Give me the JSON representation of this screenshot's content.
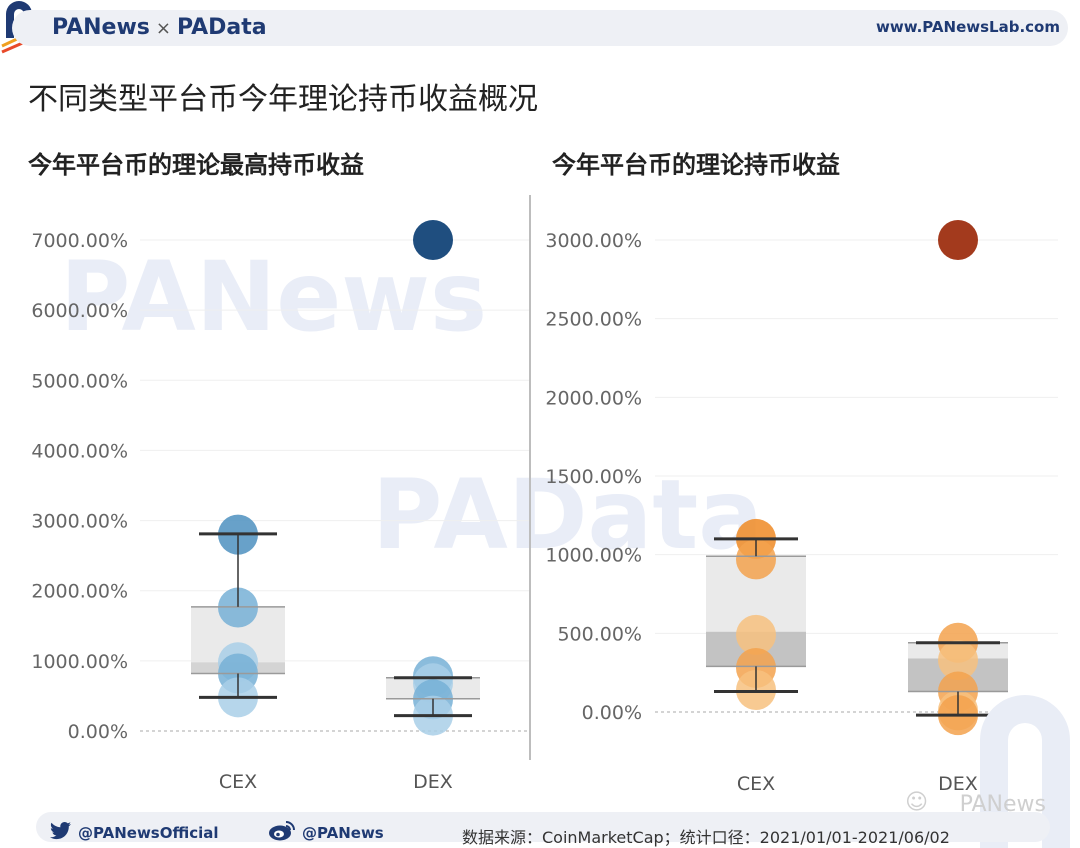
{
  "header": {
    "brand_left": "PANews",
    "brand_sep": "×",
    "brand_right": "PAData",
    "website": "www.PANewsLab.com"
  },
  "main_title": "不同类型平台币今年理论持币收益概况",
  "watermarks": [
    "PANews",
    "PAData"
  ],
  "chart_data": [
    {
      "type": "box",
      "title": "今年平台币的理论最高持币收益",
      "categories": [
        "CEX",
        "DEX"
      ],
      "ylim": [
        -400,
        7700
      ],
      "yticks": [
        0,
        1000,
        2000,
        3000,
        4000,
        5000,
        6000,
        7000
      ],
      "ytick_labels": [
        "0.00%",
        "1000.00%",
        "2000.00%",
        "3000.00%",
        "4000.00%",
        "5000.00%",
        "6000.00%",
        "7000.00%"
      ],
      "grid": true,
      "boxes": [
        {
          "category": "CEX",
          "whisker_low": 480,
          "q1": 820,
          "median": 980,
          "q3": 1770,
          "whisker_high": 2810
        },
        {
          "category": "DEX",
          "whisker_low": 220,
          "q1": 460,
          "median": 460,
          "q3": 760,
          "whisker_high": 760
        }
      ],
      "points": [
        {
          "category": "CEX",
          "values": [
            2800,
            1760,
            980,
            820,
            480
          ]
        },
        {
          "category": "DEX",
          "values": [
            7000,
            780,
            680,
            450,
            220
          ]
        }
      ],
      "outliers": [
        {
          "category": "DEX",
          "value": 7000
        }
      ],
      "colors": {
        "point_light": "#a9cfe8",
        "point_mid": "#77b0d6",
        "point_dark": "#4d90c0",
        "outlier": "#1f4e7f",
        "box_light": "#e6e6e6",
        "box_dark": "#cdcdcd",
        "whisker": "#333333"
      }
    },
    {
      "type": "box",
      "title": "今年平台币的理论持币收益",
      "categories": [
        "CEX",
        "DEX"
      ],
      "ylim": [
        -160,
        3150
      ],
      "yticks": [
        0,
        500,
        1000,
        1500,
        2000,
        2500,
        3000
      ],
      "ytick_labels": [
        "0.00%",
        "500.00%",
        "1000.00%",
        "1500.00%",
        "2000.00%",
        "2500.00%",
        "3000.00%"
      ],
      "grid": true,
      "boxes": [
        {
          "category": "CEX",
          "whisker_low": 130,
          "q1": 290,
          "median": 510,
          "q3": 990,
          "whisker_high": 1100
        },
        {
          "category": "DEX",
          "whisker_low": -20,
          "q1": 130,
          "median": 340,
          "q3": 440,
          "whisker_high": 440
        }
      ],
      "points": [
        {
          "category": "CEX",
          "values": [
            1100,
            970,
            490,
            280,
            140
          ]
        },
        {
          "category": "DEX",
          "values": [
            3000,
            440,
            330,
            130,
            10,
            -20
          ]
        }
      ],
      "outliers": [
        {
          "category": "DEX",
          "value": 3000
        }
      ],
      "colors": {
        "point_light": "#f7c17f",
        "point_mid": "#f3a24e",
        "point_dark": "#ee8a24",
        "outlier": "#a33a1d",
        "box_light": "#e6e6e6",
        "box_dark": "#b9b9b9",
        "whisker": "#333333"
      }
    }
  ],
  "footer": {
    "twitter": "@PANewsOfficial",
    "weibo": "@PANews",
    "source_note": "数据来源：CoinMarketCap；统计口径：2021/01/01-2021/06/02"
  },
  "corner_watermark": "PANews",
  "icons": [
    "panews-logo-icon",
    "twitter-icon",
    "weibo-icon",
    "wechat-icon"
  ]
}
